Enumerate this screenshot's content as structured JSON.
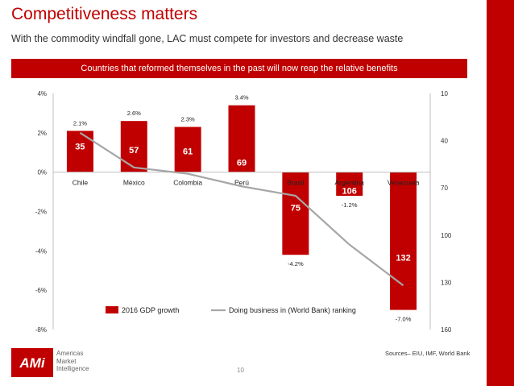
{
  "header": {
    "title": "Competitiveness matters",
    "subtitle": "With the commodity windfall gone, LAC must compete for investors and decrease waste",
    "banner": "Countries that reformed themselves in the past will now reap the relative benefits"
  },
  "footer": {
    "sources": "Sources– EIU, IMF, World Bank",
    "page_number": "10",
    "logo": {
      "mark": "AMi",
      "lines": [
        "Americas",
        "Market",
        "Intelligence"
      ]
    }
  },
  "colors": {
    "accent": "#c00000",
    "bar": "#c00000",
    "line": "#a6a6a6",
    "text": "#000000",
    "tick_text": "#333333",
    "banner_text": "#ffffff"
  },
  "chart_data": {
    "type": "bar",
    "categories": [
      "Chile",
      "México",
      "Colombia",
      "Perú",
      "Brasil",
      "Argentina",
      "Venezuela"
    ],
    "series": [
      {
        "name": "2016 GDP growth",
        "kind": "bar",
        "axis": "left",
        "values": [
          2.1,
          2.6,
          2.3,
          3.4,
          -4.2,
          -1.2,
          -7.0
        ],
        "value_labels": [
          "2.1%",
          "2.6%",
          "2.3%",
          "3.4%",
          "-4.2%",
          "-1.2%",
          "-7.0%"
        ]
      },
      {
        "name": "Doing business in (World Bank) ranking",
        "kind": "line",
        "axis": "right",
        "values": [
          35,
          57,
          61,
          69,
          75,
          106,
          132
        ]
      }
    ],
    "y_left": {
      "min": -8,
      "max": 4,
      "step": 2,
      "tick_labels": [
        "4%",
        "2%",
        "0%",
        "-2%",
        "-4%",
        "-6%",
        "-8%"
      ]
    },
    "y_right": {
      "min": 10,
      "max": 160,
      "step": 30,
      "reversed": true,
      "tick_labels": [
        "10",
        "40",
        "70",
        "100",
        "130",
        "160"
      ]
    },
    "grid": false,
    "legend": "bottom"
  }
}
